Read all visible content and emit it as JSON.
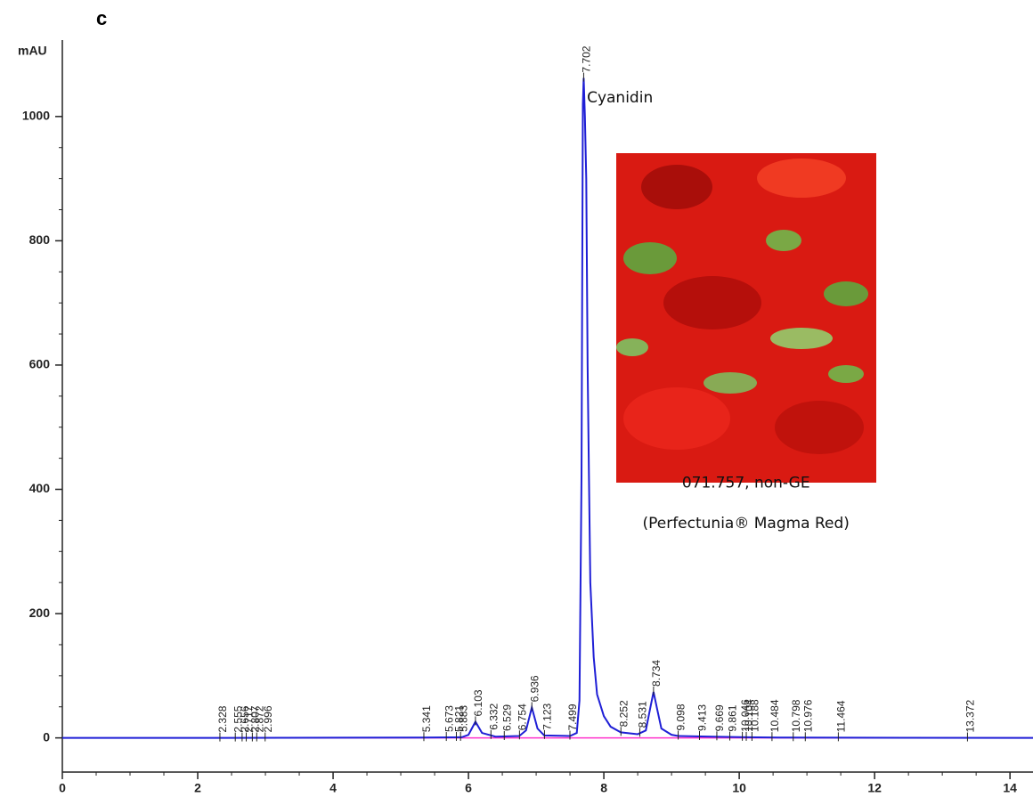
{
  "chart_data": {
    "type": "line",
    "panel_label": "c",
    "ylabel": "mAU",
    "x": [
      0,
      2.3,
      5.3,
      5.9,
      6.0,
      6.103,
      6.2,
      6.4,
      6.75,
      6.85,
      6.936,
      7.02,
      7.12,
      7.5,
      7.6,
      7.64,
      7.67,
      7.69,
      7.702,
      7.72,
      7.74,
      7.76,
      7.78,
      7.8,
      7.85,
      7.9,
      8.0,
      8.1,
      8.25,
      8.5,
      8.62,
      8.68,
      8.734,
      8.79,
      8.85,
      9.0,
      9.1,
      9.6,
      10.1,
      10.6,
      14.34
    ],
    "series": [
      {
        "color": "#ff33cc",
        "x": [
          2.25,
          14.34
        ],
        "values": [
          0,
          0
        ]
      },
      {
        "color": "#1f1fd6",
        "values": [
          0,
          0,
          0.5,
          1,
          5,
          26,
          8,
          2,
          3,
          12,
          49,
          15,
          4,
          3,
          8,
          60,
          420,
          1020,
          1062,
          1000,
          900,
          600,
          420,
          250,
          130,
          70,
          35,
          18,
          9,
          6,
          12,
          45,
          74,
          45,
          15,
          5,
          3,
          2,
          1,
          0.5,
          0
        ]
      }
    ],
    "peak_labels": [
      2.328,
      2.555,
      2.656,
      2.717,
      2.807,
      2.872,
      2.996,
      5.341,
      5.673,
      5.821,
      5.883,
      6.103,
      6.332,
      6.529,
      6.754,
      6.936,
      7.123,
      7.499,
      7.702,
      8.252,
      8.531,
      8.734,
      9.098,
      9.413,
      9.669,
      9.861,
      10.046,
      10.104,
      10.188,
      10.484,
      10.798,
      10.976,
      11.464,
      13.372
    ],
    "annotations": [
      {
        "text": "Cyanidin",
        "x": 7.75,
        "y": 1030
      },
      {
        "text": "071.757, non-GE",
        "x": 10.1,
        "y": 410
      },
      {
        "text": "(Perfectunia® Magma Red)",
        "x": 10.1,
        "y": 345
      }
    ],
    "xlim": [
      0,
      14.34
    ],
    "ylim": [
      -55,
      1123
    ],
    "xticks": [
      0,
      2,
      4,
      6,
      8,
      10,
      12,
      14
    ],
    "yticks": [
      0,
      200,
      400,
      600,
      800,
      1000
    ]
  }
}
